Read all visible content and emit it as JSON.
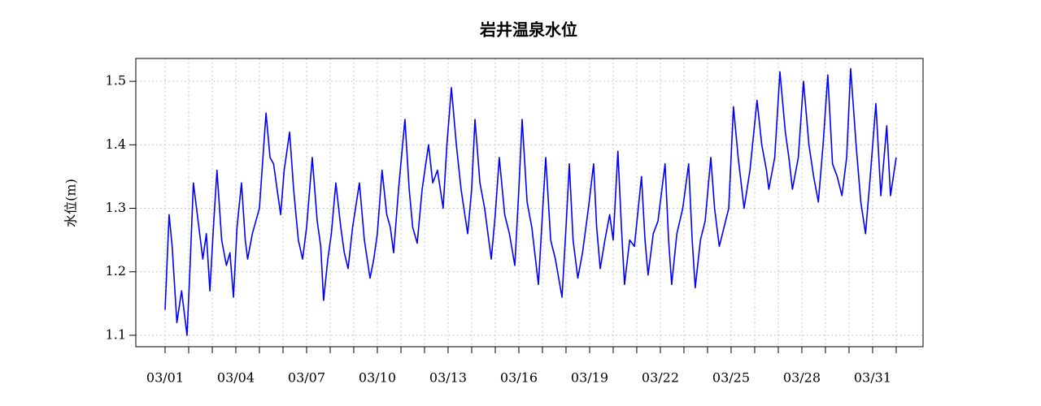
{
  "chart_data": {
    "type": "line",
    "title": "岩井温泉水位",
    "ylabel": "水位(m)",
    "xlim": [
      -0.241,
      33.14
    ],
    "ylim": [
      1.082,
      1.536
    ],
    "yticks": [
      1.1,
      1.2,
      1.3,
      1.4,
      1.5
    ],
    "xticks": [
      {
        "value": 1,
        "label": "03/01"
      },
      {
        "value": 4,
        "label": "03/04"
      },
      {
        "value": 7,
        "label": "03/07"
      },
      {
        "value": 10,
        "label": "03/10"
      },
      {
        "value": 13,
        "label": "03/13"
      },
      {
        "value": 16,
        "label": "03/16"
      },
      {
        "value": 19,
        "label": "03/19"
      },
      {
        "value": 22,
        "label": "03/22"
      },
      {
        "value": 25,
        "label": "03/25"
      },
      {
        "value": 28,
        "label": "03/28"
      },
      {
        "value": 31,
        "label": "03/31"
      }
    ],
    "xminorticks": [
      2,
      3,
      5,
      6,
      8,
      9,
      11,
      12,
      14,
      15,
      17,
      18,
      20,
      21,
      23,
      24,
      26,
      27,
      29,
      30,
      32
    ],
    "grid": true,
    "series": [
      {
        "color": "#0000ff",
        "x": [
          1.0,
          1.17,
          1.3,
          1.5,
          1.7,
          1.93,
          2.05,
          2.2,
          2.4,
          2.6,
          2.75,
          2.9,
          3.05,
          3.2,
          3.4,
          3.6,
          3.75,
          3.9,
          4.05,
          4.24,
          4.4,
          4.5,
          4.7,
          4.85,
          5.0,
          5.28,
          5.45,
          5.6,
          5.9,
          6.05,
          6.28,
          6.45,
          6.65,
          6.83,
          7.0,
          7.24,
          7.45,
          7.6,
          7.72,
          7.9,
          8.05,
          8.24,
          8.45,
          8.6,
          8.76,
          8.95,
          9.24,
          9.45,
          9.69,
          9.85,
          10.0,
          10.2,
          10.4,
          10.55,
          10.69,
          10.9,
          11.17,
          11.35,
          11.5,
          11.69,
          11.9,
          12.17,
          12.35,
          12.55,
          12.79,
          12.95,
          13.14,
          13.35,
          13.55,
          13.83,
          14.0,
          14.14,
          14.35,
          14.55,
          14.83,
          15.0,
          15.17,
          15.4,
          15.6,
          15.83,
          16.0,
          16.14,
          16.35,
          16.55,
          16.83,
          17.0,
          17.14,
          17.35,
          17.55,
          17.83,
          18.0,
          18.14,
          18.3,
          18.5,
          18.7,
          18.95,
          19.17,
          19.3,
          19.45,
          19.65,
          19.85,
          20.0,
          20.2,
          20.35,
          20.48,
          20.7,
          20.9,
          21.2,
          21.35,
          21.48,
          21.7,
          21.9,
          22.2,
          22.35,
          22.48,
          22.7,
          22.95,
          23.2,
          23.35,
          23.48,
          23.7,
          23.9,
          24.14,
          24.3,
          24.5,
          24.7,
          24.9,
          25.1,
          25.3,
          25.55,
          25.8,
          26.1,
          26.3,
          26.5,
          26.6,
          26.85,
          27.07,
          27.3,
          27.45,
          27.6,
          27.85,
          28.07,
          28.3,
          28.5,
          28.7,
          28.9,
          29.1,
          29.3,
          29.5,
          29.7,
          29.9,
          30.07,
          30.3,
          30.5,
          30.7,
          30.9,
          31.14,
          31.35,
          31.6,
          31.76,
          32.0
        ],
        "values": [
          1.14,
          1.29,
          1.24,
          1.12,
          1.17,
          1.1,
          1.2,
          1.34,
          1.28,
          1.22,
          1.26,
          1.17,
          1.27,
          1.36,
          1.25,
          1.21,
          1.23,
          1.16,
          1.27,
          1.34,
          1.25,
          1.22,
          1.26,
          1.28,
          1.3,
          1.45,
          1.38,
          1.37,
          1.29,
          1.36,
          1.42,
          1.33,
          1.25,
          1.22,
          1.27,
          1.38,
          1.28,
          1.24,
          1.155,
          1.22,
          1.26,
          1.34,
          1.27,
          1.23,
          1.205,
          1.27,
          1.34,
          1.25,
          1.19,
          1.22,
          1.26,
          1.36,
          1.29,
          1.27,
          1.23,
          1.33,
          1.44,
          1.33,
          1.27,
          1.245,
          1.33,
          1.4,
          1.34,
          1.36,
          1.3,
          1.4,
          1.49,
          1.4,
          1.33,
          1.26,
          1.33,
          1.44,
          1.34,
          1.3,
          1.22,
          1.29,
          1.38,
          1.29,
          1.26,
          1.21,
          1.33,
          1.44,
          1.31,
          1.27,
          1.18,
          1.29,
          1.38,
          1.25,
          1.22,
          1.16,
          1.27,
          1.37,
          1.25,
          1.19,
          1.23,
          1.3,
          1.37,
          1.27,
          1.205,
          1.25,
          1.29,
          1.25,
          1.39,
          1.27,
          1.18,
          1.25,
          1.24,
          1.35,
          1.25,
          1.195,
          1.26,
          1.28,
          1.37,
          1.25,
          1.18,
          1.26,
          1.3,
          1.37,
          1.25,
          1.175,
          1.25,
          1.28,
          1.38,
          1.3,
          1.24,
          1.27,
          1.3,
          1.46,
          1.38,
          1.3,
          1.36,
          1.47,
          1.4,
          1.36,
          1.33,
          1.38,
          1.515,
          1.42,
          1.38,
          1.33,
          1.38,
          1.5,
          1.4,
          1.35,
          1.31,
          1.4,
          1.51,
          1.37,
          1.35,
          1.32,
          1.38,
          1.52,
          1.4,
          1.31,
          1.26,
          1.35,
          1.465,
          1.32,
          1.43,
          1.32,
          1.38
        ]
      }
    ]
  }
}
